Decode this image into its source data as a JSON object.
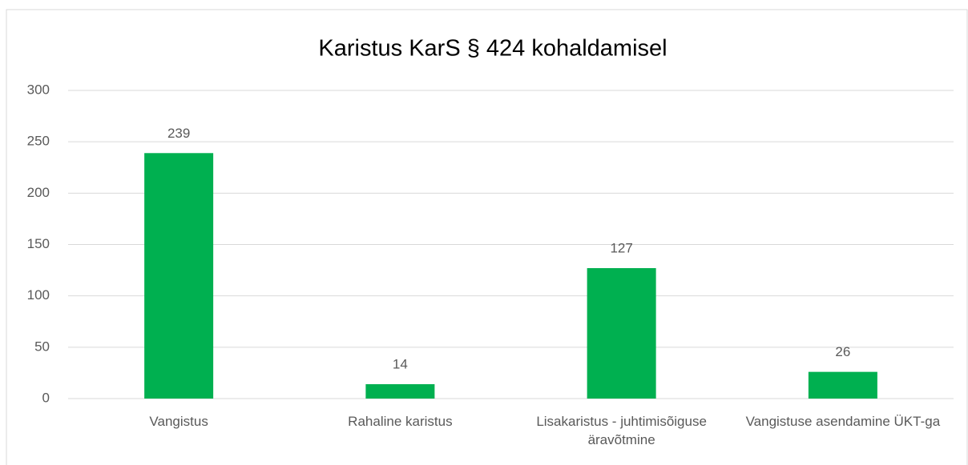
{
  "chart_data": {
    "type": "bar",
    "title": "Karistus KarS § 424 kohaldamisel",
    "categories": [
      "Vangistus",
      "Rahaline karistus",
      "Lisakaristus - juhtimisõiguse äravõtmine",
      "Vangistuse asendamine ÜKT-ga"
    ],
    "values": [
      239,
      14,
      127,
      26
    ],
    "color": "#00b050",
    "ylim": [
      0,
      300
    ],
    "yticks": [
      0,
      50,
      100,
      150,
      200,
      250,
      300
    ],
    "grid": true
  }
}
